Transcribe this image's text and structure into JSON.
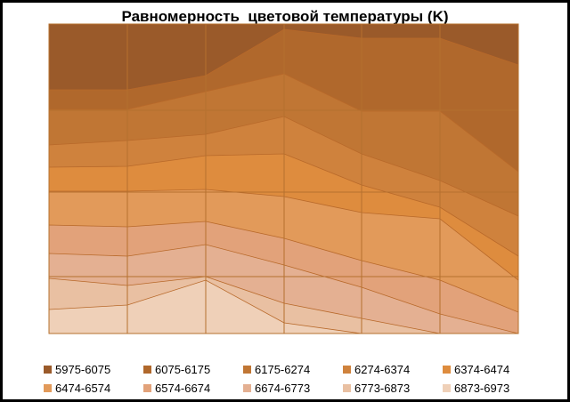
{
  "chart_data": {
    "type": "contour",
    "title": "Равномерность  цветовой температуры (K)",
    "bands": [
      {
        "label": "5975-6075",
        "color": "#9a5a2a"
      },
      {
        "label": "6075-6175",
        "color": "#b0682c"
      },
      {
        "label": "6175-6274",
        "color": "#c07634"
      },
      {
        "label": "6274-6374",
        "color": "#cf823d"
      },
      {
        "label": "6374-6474",
        "color": "#de8c3e"
      },
      {
        "label": "6474-6574",
        "color": "#e29a5a"
      },
      {
        "label": "6574-6674",
        "color": "#e2a27a"
      },
      {
        "label": "6674-6773",
        "color": "#e4b092"
      },
      {
        "label": "6773-6873",
        "color": "#e9c0a2"
      },
      {
        "label": "6873-6973",
        "color": "#efd0b8"
      }
    ],
    "grid": true,
    "legend": "bottom"
  }
}
